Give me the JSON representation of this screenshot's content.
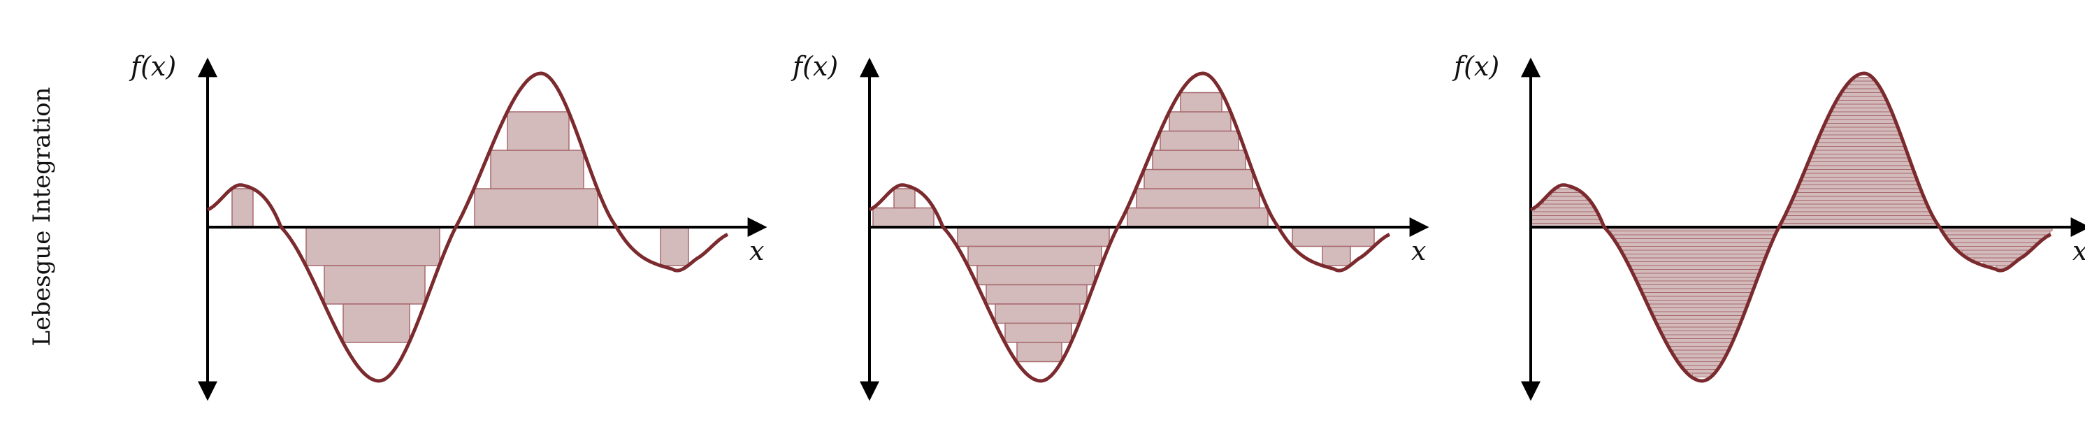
{
  "row_label": "Lebesgue Integration",
  "colors": {
    "curve": "#7b2a2e",
    "fill": "#d3bbbc",
    "fill_edge": "#a86a6e",
    "axis": "#000000"
  },
  "panels": [
    {
      "y_label": "f(x)",
      "x_label": "x",
      "levels": 4
    },
    {
      "y_label": "f(x)",
      "x_label": "x",
      "levels": 8
    },
    {
      "y_label": "f(x)",
      "x_label": "x",
      "levels": 40
    }
  ]
}
